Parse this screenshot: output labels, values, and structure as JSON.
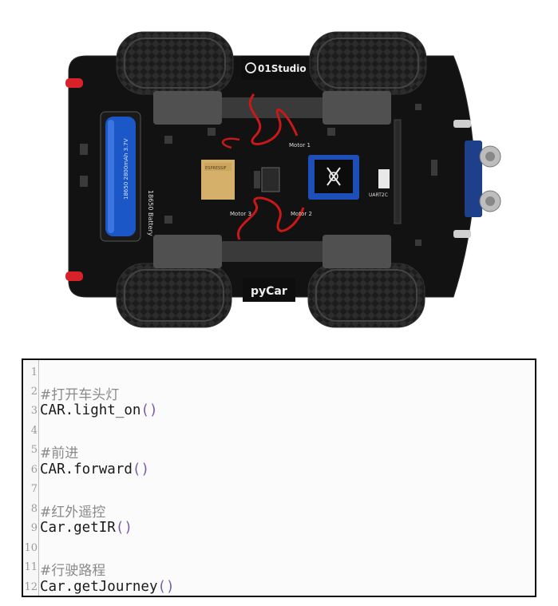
{
  "photo": {
    "brand_label": "01Studio",
    "product_label": "pyCar",
    "battery_label": "18650 Battery",
    "battery_print": "18650 2800mAh 3.7V",
    "module_label": "ESPRESSIF",
    "motor_labels": [
      "Motor 1",
      "Motor 2",
      "Motor 3"
    ],
    "uart_label": "UART2C",
    "colors": {
      "board": "#121212",
      "tire": "#1c1c1c",
      "battery": "#1c57c8",
      "wire_red": "#c81818",
      "oled": "#1e4fb8",
      "led": "#d8222a"
    }
  },
  "code": {
    "lines": [
      {
        "n": "1",
        "text": "",
        "kind": "blank"
      },
      {
        "n": "2",
        "text": "#打开车头灯",
        "kind": "comment"
      },
      {
        "n": "3",
        "name": "CAR.light_on",
        "kind": "call"
      },
      {
        "n": "4",
        "text": "",
        "kind": "blank"
      },
      {
        "n": "5",
        "text": "#前进",
        "kind": "comment"
      },
      {
        "n": "6",
        "name": "CAR.forward",
        "kind": "call"
      },
      {
        "n": "7",
        "text": "",
        "kind": "blank"
      },
      {
        "n": "8",
        "text": "#红外遥控",
        "kind": "comment"
      },
      {
        "n": "9",
        "name": "Car.getIR",
        "kind": "call"
      },
      {
        "n": "10",
        "text": "",
        "kind": "blank"
      },
      {
        "n": "11",
        "text": "#行驶路程",
        "kind": "comment"
      },
      {
        "n": "12",
        "name": "Car.getJourney",
        "kind": "call"
      }
    ]
  }
}
